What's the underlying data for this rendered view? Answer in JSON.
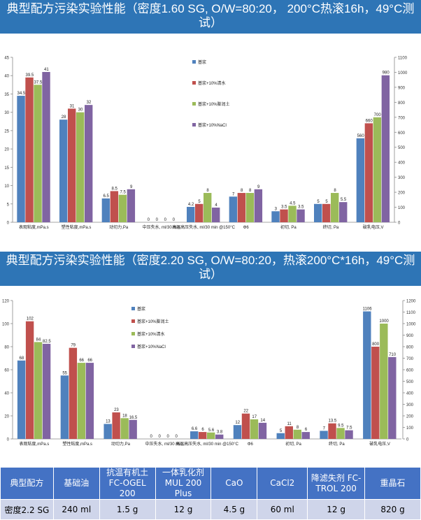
{
  "banners": {
    "top": "典型配方污染实验性能（密度1.60 SG, O/W=80:20， 200°C热滚16h，49°C测试）",
    "bottom": "典型配方污染实验性能（密度2.20 SG, O/W=80:20，热滚200°C*16h，49°C测试）"
  },
  "chart_data": [
    {
      "type": "bar",
      "categories": [
        "表观粘度,mPa.s",
        "塑性粘度,mPa.s",
        "动切力,Pa",
        "中压失水, ml/30 min",
        "高温高压失水, ml/30 min @150°C",
        "Φ6",
        "初切, Pa",
        "终切, Pa",
        "破乳电压,V"
      ],
      "series": [
        {
          "name": "基浆",
          "color": "#4f81bd",
          "values": [
            34.5,
            28,
            6.5,
            0,
            4.2,
            7,
            3,
            5,
            560
          ]
        },
        {
          "name": "基浆+10%清水",
          "color": "#c0504d",
          "values": [
            39.5,
            31,
            8.5,
            0,
            5,
            8,
            3.5,
            5,
            660
          ]
        },
        {
          "name": "基浆+10%膨润土",
          "color": "#9bbb59",
          "values": [
            37.5,
            30,
            7.5,
            0,
            8,
            8,
            4.5,
            8,
            700
          ]
        },
        {
          "name": "基浆+10%NaCl",
          "color": "#8064a2",
          "values": [
            41,
            32,
            9,
            0,
            4,
            9,
            3.5,
            5.5,
            980
          ]
        }
      ],
      "labels": [
        [
          "34.5",
          "28",
          "6.5",
          "0",
          "4.2",
          "7",
          "3",
          "5",
          "560"
        ],
        [
          "39.5",
          "31",
          "8.5",
          "0",
          "5",
          "8",
          "3.5",
          "5",
          "660"
        ],
        [
          "37.5",
          "30",
          "7.5",
          "0",
          "8",
          "8",
          "4.5",
          "8",
          "700"
        ],
        [
          "41",
          "32",
          "9",
          "0",
          "4",
          "9",
          "3.5",
          "5.5",
          "980"
        ]
      ],
      "ylim": [
        0,
        45
      ],
      "yticks": [
        "0",
        "5",
        "10",
        "15",
        "20",
        "25",
        "30",
        "35",
        "40",
        "45"
      ],
      "y2lim": [
        0,
        1100
      ],
      "y2ticks": [
        "0",
        "100",
        "200",
        "300",
        "400",
        "500",
        "600",
        "700",
        "800",
        "900",
        "1000",
        "1100"
      ],
      "secondary_axis_category": "破乳电压,V",
      "legend_position": "right"
    },
    {
      "type": "bar",
      "categories": [
        "表观粘度,mPa.s",
        "塑性粘度,mPa.s",
        "动切力,Pa",
        "中压失水, ml/30 min",
        "高温高压失水, ml/30 min @150°C",
        "Φ6",
        "初切, Pa",
        "终切, Pa",
        "破乳电压,V"
      ],
      "series": [
        {
          "name": "基浆",
          "color": "#4f81bd",
          "values": [
            68,
            55,
            13,
            0,
            6.6,
            12,
            5,
            7,
            1106
          ]
        },
        {
          "name": "基浆+10%膨润土",
          "color": "#c0504d",
          "values": [
            102,
            79,
            23,
            0,
            6,
            22,
            11,
            13.5,
            800
          ]
        },
        {
          "name": "基浆+10%清水",
          "color": "#9bbb59",
          "values": [
            84,
            66,
            18,
            0,
            5.6,
            17,
            8,
            9.5,
            1000
          ]
        },
        {
          "name": "基浆+10%NaCl",
          "color": "#8064a2",
          "values": [
            82.5,
            66,
            16.5,
            0,
            3.8,
            14,
            6,
            7.5,
            710
          ]
        }
      ],
      "labels": [
        [
          "68",
          "55",
          "13",
          "0",
          "6.6",
          "12",
          "5",
          "7",
          "1106"
        ],
        [
          "102",
          "79",
          "23",
          "0",
          "6",
          "22",
          "11",
          "13.5",
          "800"
        ],
        [
          "84",
          "66",
          "18",
          "0",
          "5.6",
          "17",
          "8",
          "9.5",
          "1000"
        ],
        [
          "82.5",
          "66",
          "16.5",
          "0",
          "3.8",
          "14",
          "6",
          "7.5",
          "710"
        ]
      ],
      "ylim": [
        0,
        120
      ],
      "yticks": [
        "0",
        "20",
        "40",
        "60",
        "80",
        "100",
        "120"
      ],
      "y2lim": [
        0,
        1200
      ],
      "y2ticks": [
        "0",
        "100",
        "200",
        "300",
        "400",
        "500",
        "600",
        "700",
        "800",
        "900",
        "1000",
        "1100",
        "1200"
      ],
      "secondary_axis_category": "破乳电压,V",
      "legend_position": "right"
    }
  ],
  "table": {
    "headers": [
      "典型配方",
      "基础油",
      "抗温有机土 FC-OGEL 200",
      "一体乳化剂 MUL 200 Plus",
      "CaO",
      "CaCl2",
      "降滤失剂 FC-TROL 200",
      "重晶石"
    ],
    "row": [
      "密度2.2 SG",
      "240 ml",
      "1.5 g",
      "12 g",
      "4.5 g",
      "60 ml",
      "12 g",
      "820 g"
    ]
  }
}
